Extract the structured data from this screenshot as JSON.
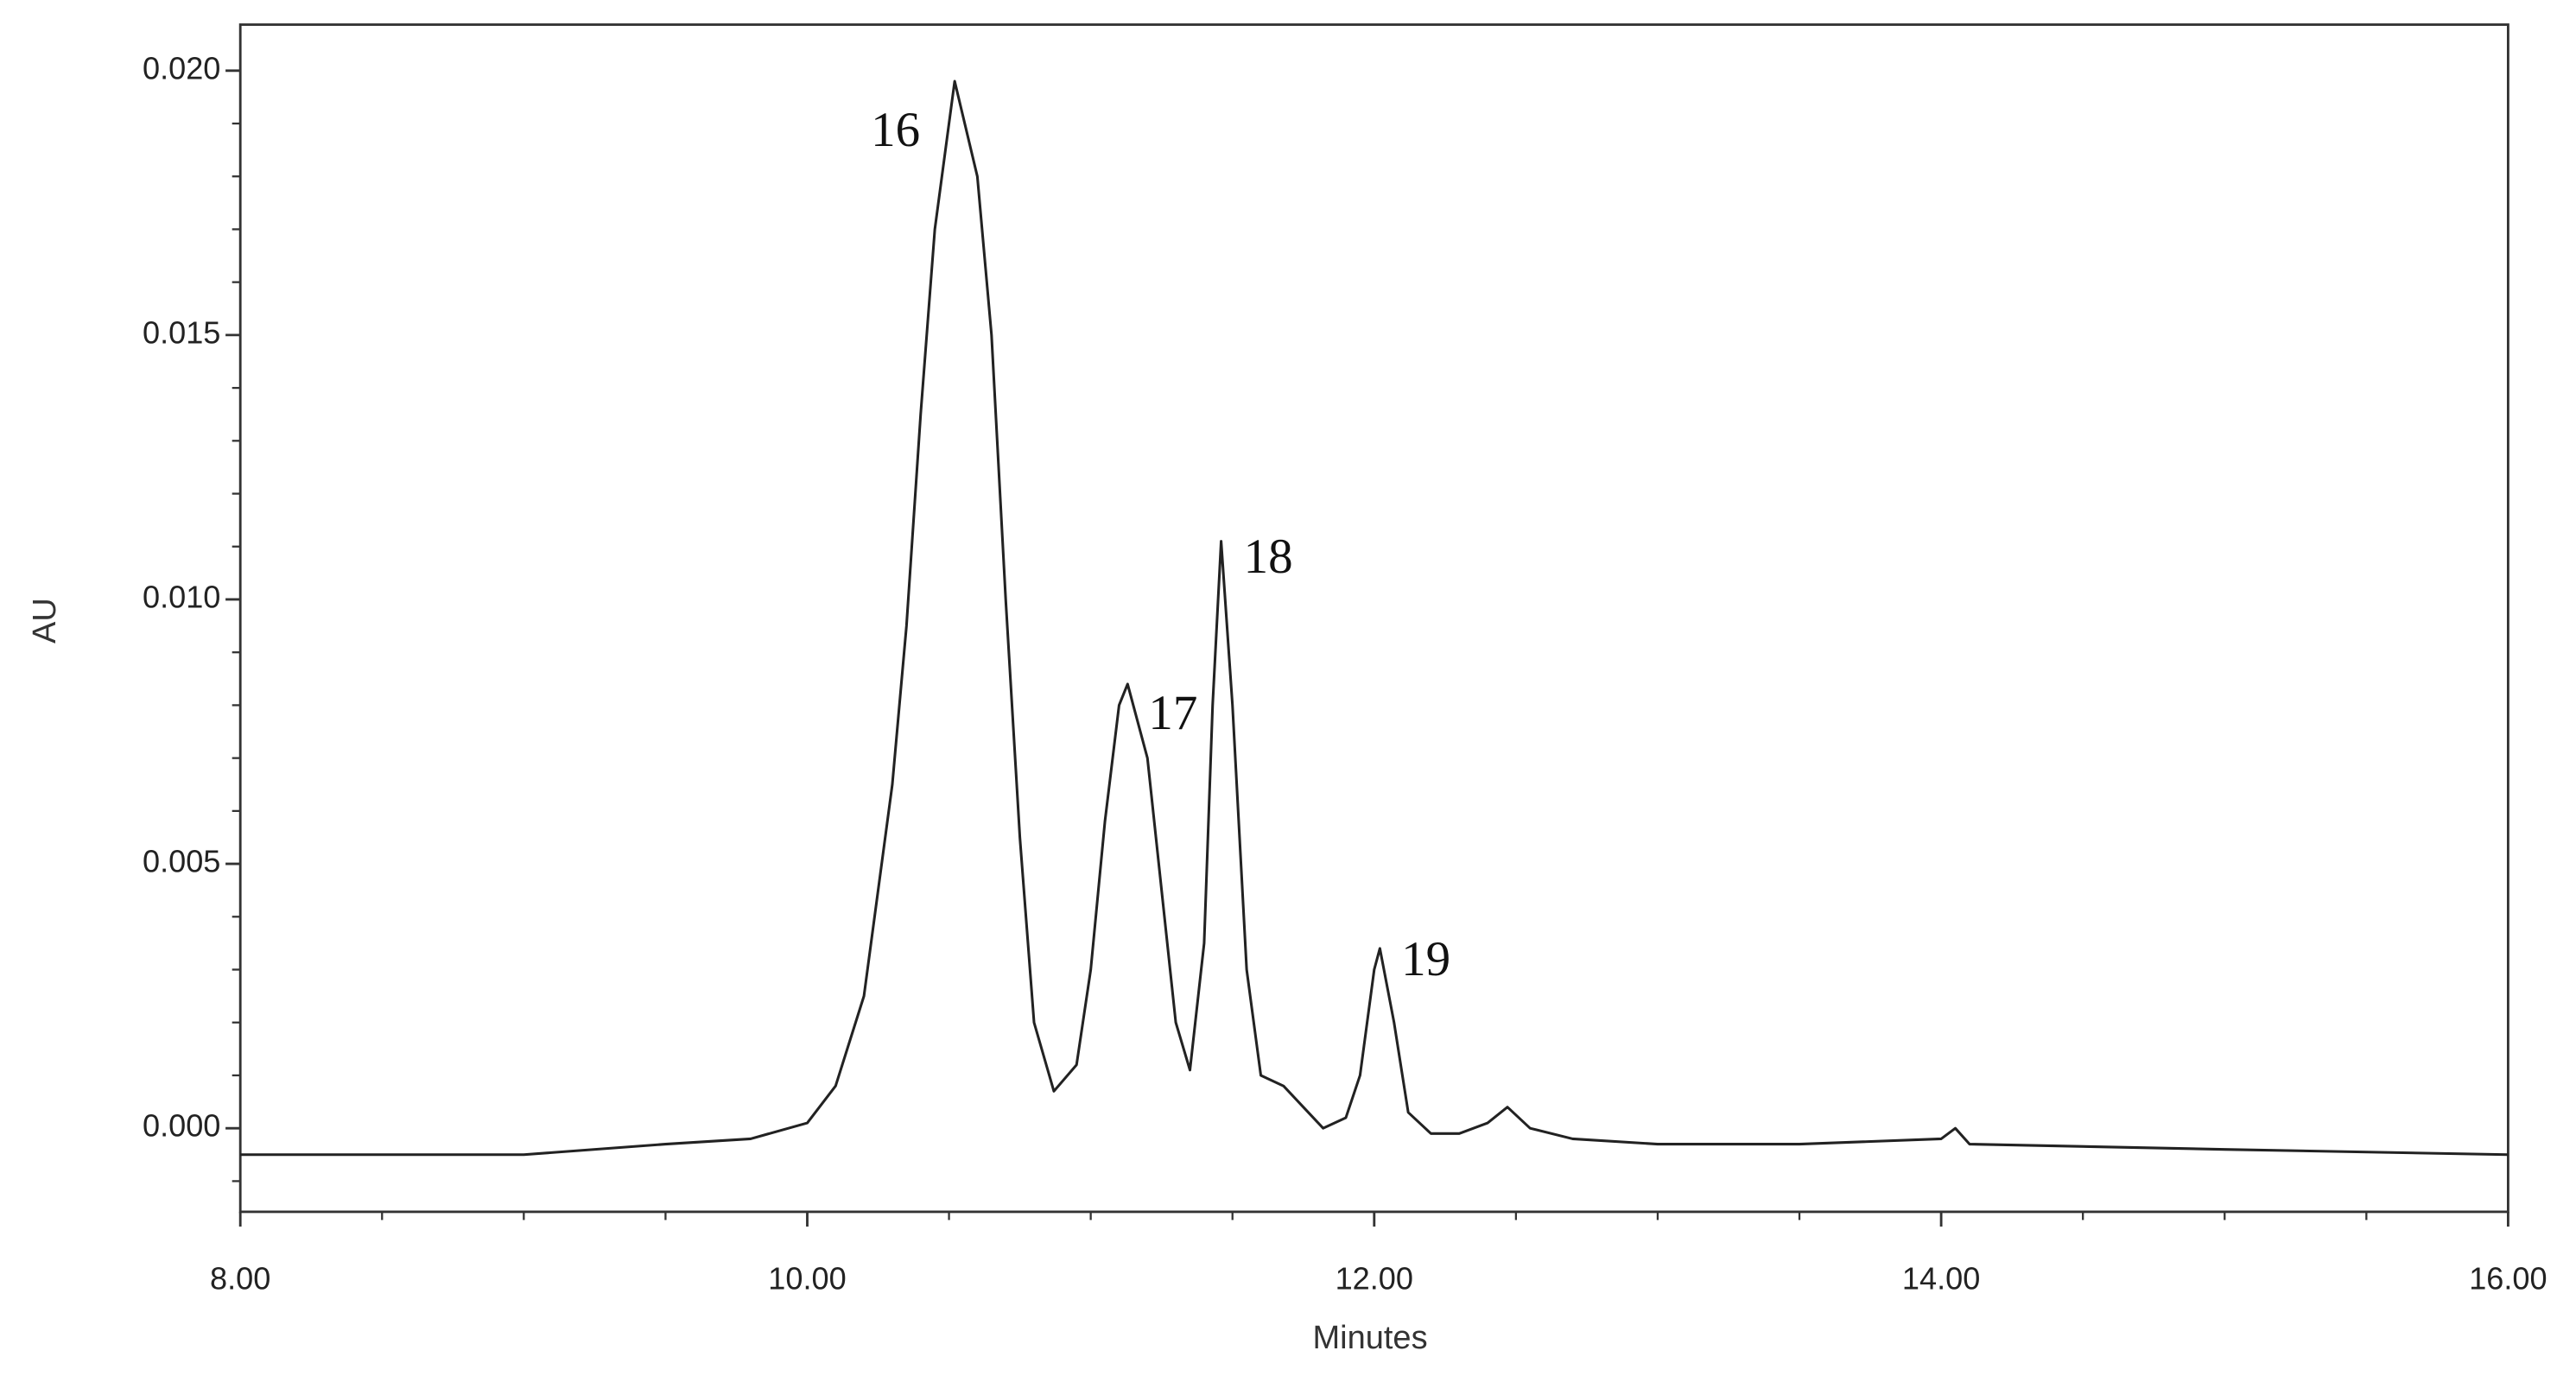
{
  "chart_data": {
    "type": "line",
    "x_label": "Minutes",
    "y_label": "AU",
    "xlim": [
      8,
      16
    ],
    "ylim": [
      -0.00158,
      0.02087
    ],
    "xticks": [
      {
        "value": 8,
        "label": "8.00"
      },
      {
        "value": 10,
        "label": "10.00"
      },
      {
        "value": 12,
        "label": "12.00"
      },
      {
        "value": 14,
        "label": "14.00"
      },
      {
        "value": 16,
        "label": "16.00"
      }
    ],
    "yticks": [
      {
        "value": 0,
        "label": "0.000"
      },
      {
        "value": 0.005,
        "label": "0.005"
      },
      {
        "value": 0.01,
        "label": "0.010"
      },
      {
        "value": 0.015,
        "label": "0.015"
      },
      {
        "value": 0.02,
        "label": "0.020"
      }
    ],
    "xminorticks": [
      8.5,
      9,
      9.5,
      10.5,
      11,
      11.5,
      12.5,
      13,
      13.5,
      14.5,
      15,
      15.5
    ],
    "yminorticks": [
      -0.001,
      0.001,
      0.002,
      0.003,
      0.004,
      0.006,
      0.007,
      0.008,
      0.009,
      0.011,
      0.012,
      0.013,
      0.014,
      0.016,
      0.017,
      0.018,
      0.019
    ],
    "color": "#222222",
    "annotations": [
      "16",
      "17",
      "18",
      "19"
    ],
    "x": [
      8.0,
      9.0,
      9.5,
      9.8,
      10.0,
      10.1,
      10.2,
      10.3,
      10.35,
      10.4,
      10.45,
      10.52,
      10.6,
      10.65,
      10.7,
      10.75,
      10.8,
      10.87,
      10.95,
      11.0,
      11.05,
      11.1,
      11.13,
      11.2,
      11.25,
      11.3,
      11.35,
      11.4,
      11.43,
      11.46,
      11.5,
      11.55,
      11.6,
      11.68,
      11.75,
      11.82,
      11.9,
      11.95,
      12.0,
      12.02,
      12.07,
      12.12,
      12.2,
      12.3,
      12.4,
      12.47,
      12.55,
      12.7,
      13.0,
      13.5,
      14.0,
      14.05,
      14.1,
      15.0,
      16.0
    ],
    "values": [
      -0.0005,
      -0.0005,
      -0.0003,
      -0.0002,
      0.0001,
      0.0008,
      0.0025,
      0.0065,
      0.0095,
      0.0135,
      0.017,
      0.0198,
      0.018,
      0.015,
      0.01,
      0.0055,
      0.002,
      0.0007,
      0.0012,
      0.003,
      0.0058,
      0.008,
      0.0084,
      0.007,
      0.0045,
      0.002,
      0.0011,
      0.0035,
      0.008,
      0.0111,
      0.008,
      0.003,
      0.001,
      0.0008,
      0.0004,
      0.0,
      0.0002,
      0.001,
      0.003,
      0.0034,
      0.002,
      0.0003,
      -0.0001,
      -0.0001,
      0.0001,
      0.0004,
      0.0,
      -0.0002,
      -0.0003,
      -0.0003,
      -0.0002,
      0.0,
      -0.0003,
      -0.0004,
      -0.0005
    ]
  }
}
